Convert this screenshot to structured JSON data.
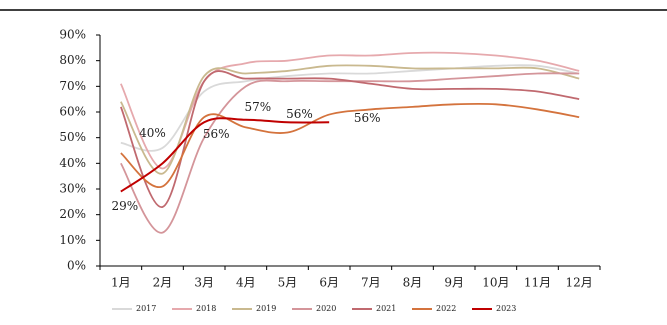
{
  "chart_data": {
    "type": "line",
    "categories": [
      "1月",
      "2月",
      "3月",
      "4月",
      "5月",
      "6月",
      "7月",
      "8月",
      "9月",
      "10月",
      "11月",
      "12月"
    ],
    "ylim": [
      0,
      90
    ],
    "yticks": [
      {
        "value": 0,
        "label": "0%"
      },
      {
        "value": 10,
        "label": "10%"
      },
      {
        "value": 20,
        "label": "20%"
      },
      {
        "value": 30,
        "label": "30%"
      },
      {
        "value": 40,
        "label": "40%"
      },
      {
        "value": 50,
        "label": "50%"
      },
      {
        "value": 60,
        "label": "60%"
      },
      {
        "value": 70,
        "label": "70%"
      },
      {
        "value": 80,
        "label": "80%"
      },
      {
        "value": 90,
        "label": "90%"
      }
    ],
    "legend": "bottom",
    "series": [
      {
        "name": "2017",
        "color": "#d9d9d9",
        "values": [
          48,
          46,
          68,
          72,
          74,
          75,
          75,
          76,
          77,
          78,
          78,
          75
        ]
      },
      {
        "name": "2018",
        "color": "#e6a9ad",
        "values": [
          71,
          38,
          72,
          79,
          80,
          82,
          82,
          83,
          83,
          82,
          80,
          76
        ]
      },
      {
        "name": "2019",
        "color": "#c9b98f",
        "values": [
          64,
          36,
          74,
          75,
          76,
          78,
          78,
          77,
          77,
          77,
          77,
          73
        ]
      },
      {
        "name": "2020",
        "color": "#d4959a",
        "values": [
          40,
          13,
          50,
          70,
          72,
          72,
          72,
          72,
          73,
          74,
          75,
          75
        ]
      },
      {
        "name": "2021",
        "color": "#c0696f",
        "values": [
          62,
          23,
          72,
          73,
          73,
          73,
          71,
          69,
          69,
          69,
          68,
          65
        ]
      },
      {
        "name": "2022",
        "color": "#d4733d",
        "values": [
          44,
          31,
          58,
          54,
          52,
          59,
          61,
          62,
          63,
          63,
          61,
          58
        ]
      },
      {
        "name": "2023",
        "color": "#c00000",
        "values": [
          29,
          40,
          56,
          57,
          56,
          56,
          null,
          null,
          null,
          null,
          null,
          null
        ],
        "value_labels": [
          "29%",
          "40%",
          "56%",
          "57%",
          "56%",
          "56%",
          null,
          null,
          null,
          null,
          null,
          null
        ]
      }
    ]
  }
}
